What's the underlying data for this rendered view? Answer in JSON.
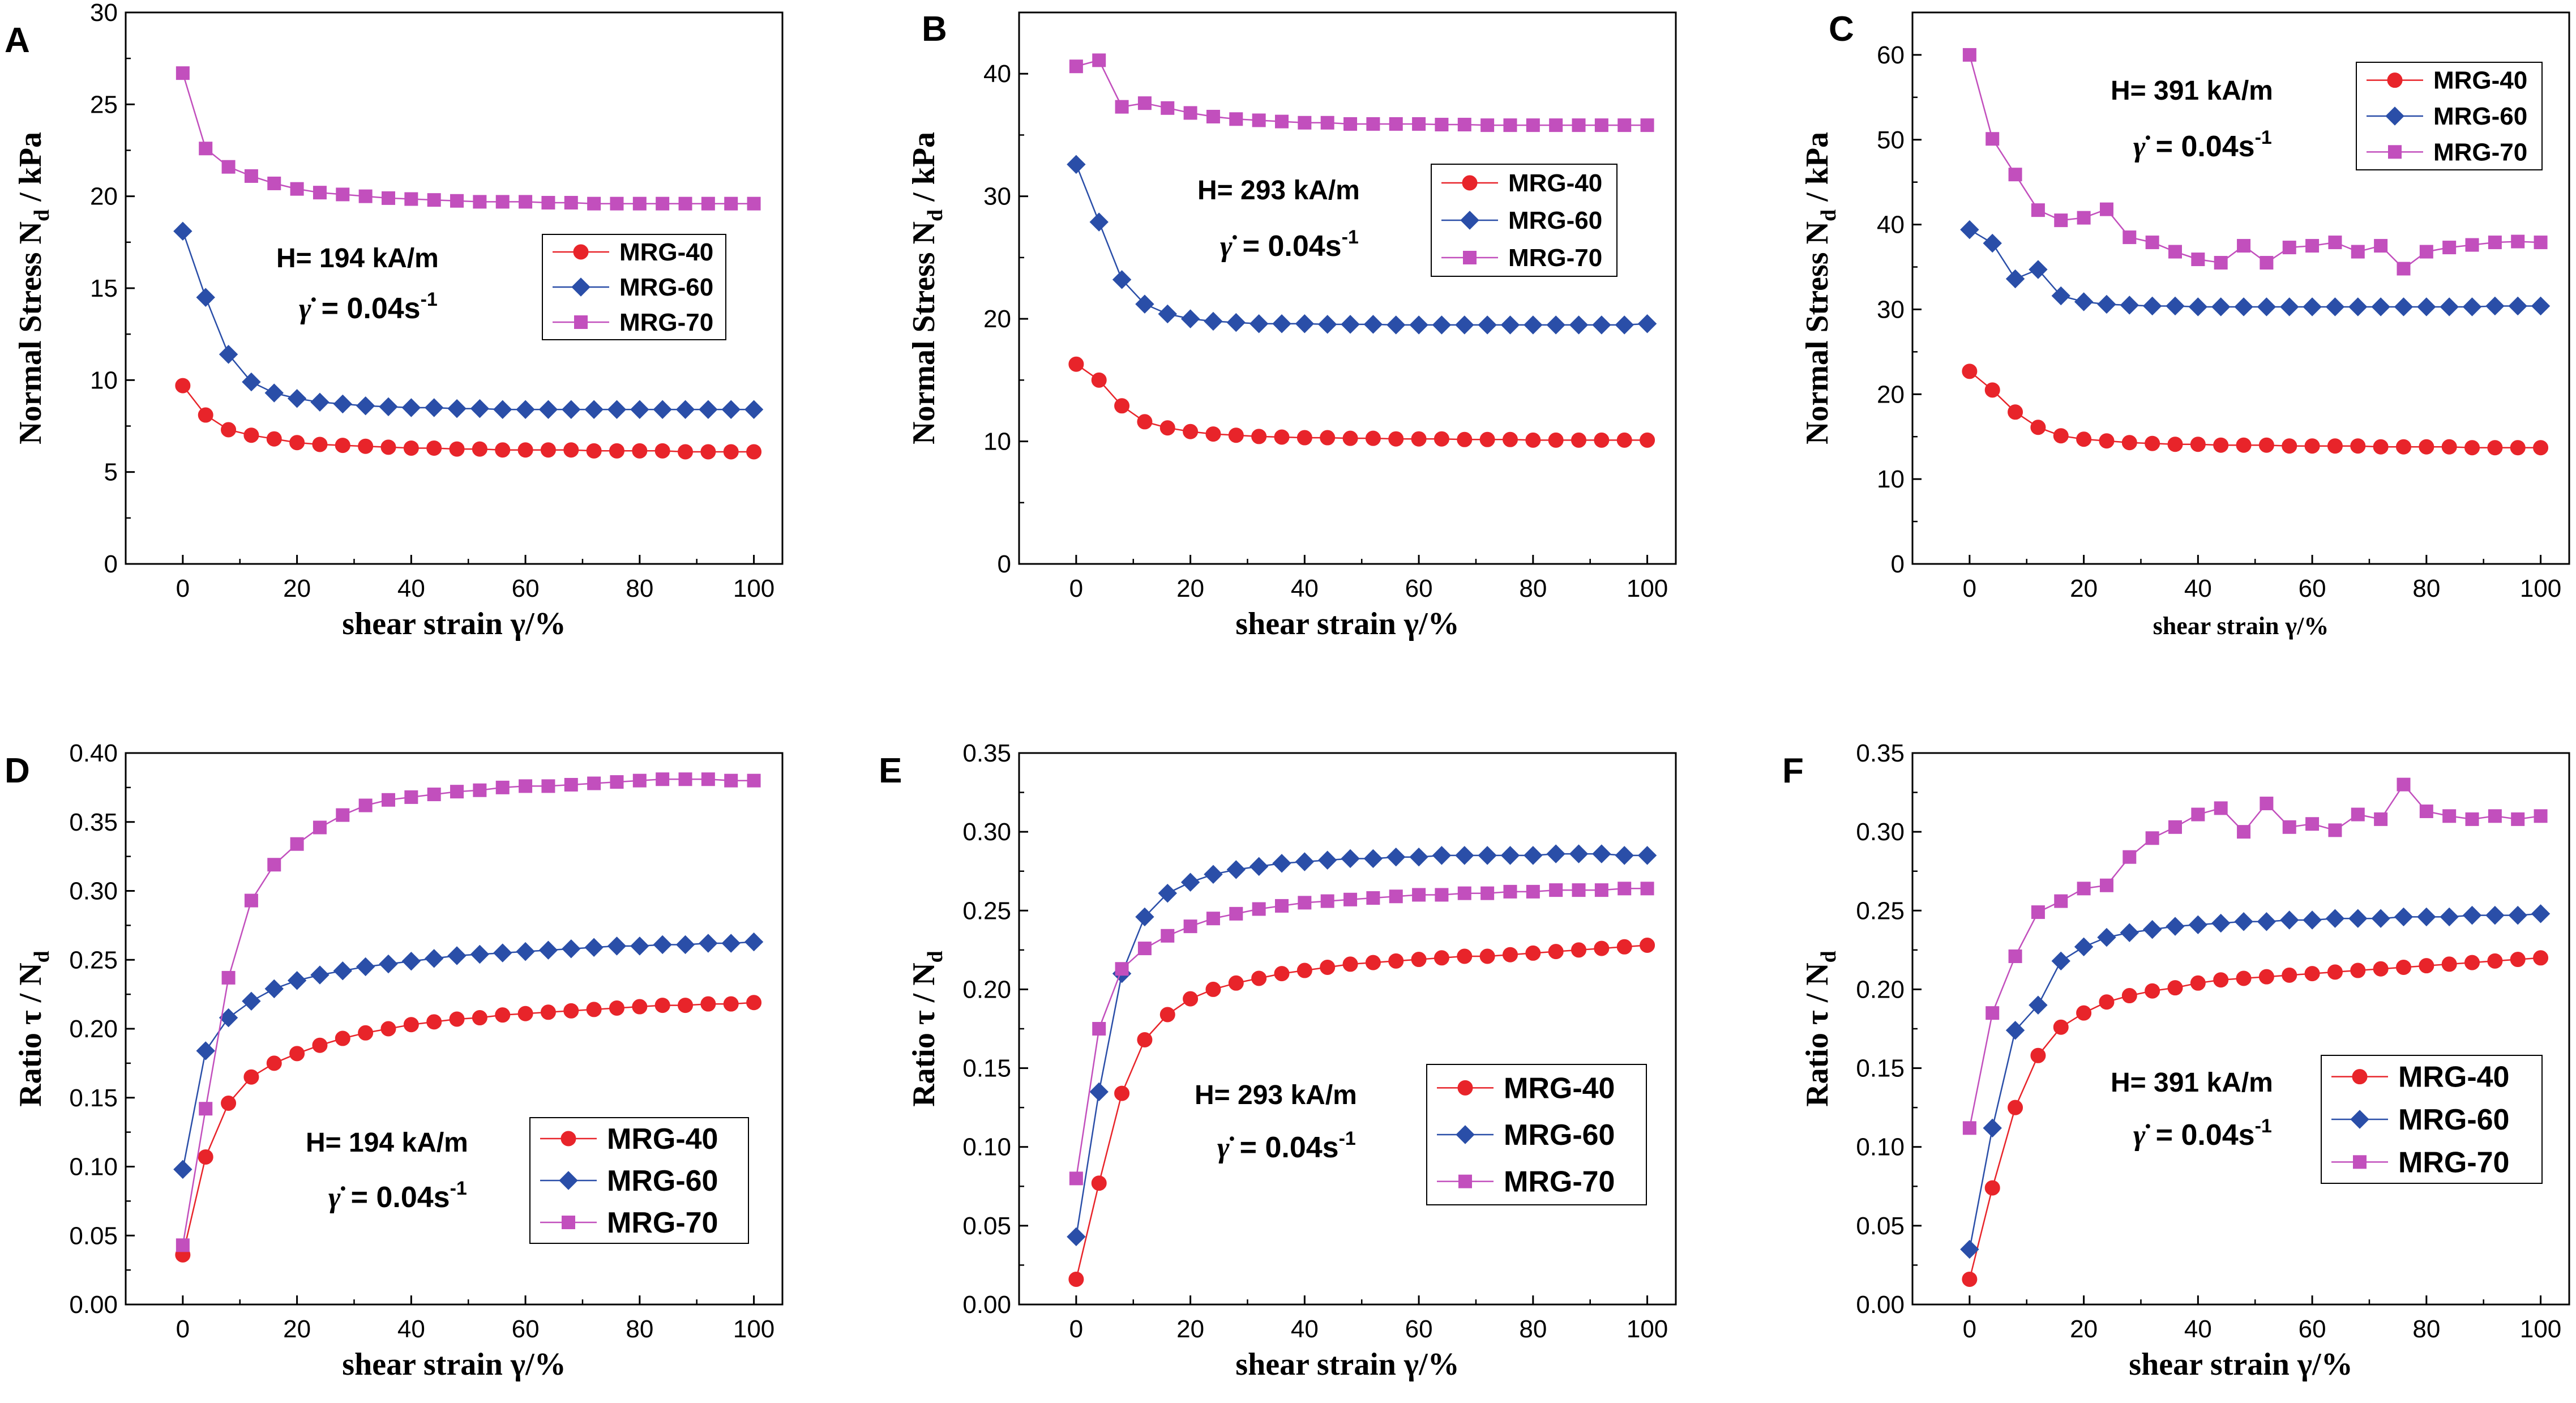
{
  "figure": {
    "colors": {
      "MRG-40": "#e8242a",
      "MRG-60": "#2a4ea8",
      "MRG-70": "#c24fbd",
      "axis": "#000000"
    },
    "panels": [
      {
        "letter": "A",
        "annotation": {
          "field": "H= 194 kA/m",
          "rate_symbol": "γ̇",
          "rate": "= 0.04s",
          "rate_exp": "-1"
        },
        "legend_labels": [
          "MRG-40",
          "MRG-60",
          "MRG-70"
        ]
      },
      {
        "letter": "B",
        "annotation": {
          "field": "H= 293 kA/m",
          "rate_symbol": "γ̇",
          "rate": "= 0.04s",
          "rate_exp": "-1"
        },
        "legend_labels": [
          "MRG-40",
          "MRG-60",
          "MRG-70"
        ]
      },
      {
        "letter": "C",
        "annotation": {
          "field": "H= 391 kA/m",
          "rate_symbol": "γ̇",
          "rate": "= 0.04s",
          "rate_exp": "-1"
        },
        "legend_labels": [
          "MRG-40",
          "MRG-60",
          "MRG-70"
        ]
      },
      {
        "letter": "D",
        "annotation": {
          "field": "H= 194 kA/m",
          "rate_symbol": "γ̇",
          "rate": "= 0.04s",
          "rate_exp": "-1"
        },
        "legend_labels": [
          "MRG-40",
          "MRG-60",
          "MRG-70"
        ]
      },
      {
        "letter": "E",
        "annotation": {
          "field": "H= 293 kA/m",
          "rate_symbol": "γ̇",
          "rate": "= 0.04s",
          "rate_exp": "-1"
        },
        "legend_labels": [
          "MRG-40",
          "MRG-60",
          "MRG-70"
        ]
      },
      {
        "letter": "F",
        "annotation": {
          "field": "H= 391 kA/m",
          "rate_symbol": "γ̇",
          "rate": "= 0.04s",
          "rate_exp": "-1"
        },
        "legend_labels": [
          "MRG-40",
          "MRG-60",
          "MRG-70"
        ]
      }
    ]
  },
  "chart_data": [
    {
      "type": "line",
      "panel": "A",
      "xlabel": "shear strain γ/%",
      "ylabel": "Normal Stress N_d / kPa",
      "ylabel_parts": [
        "Normal Stress N",
        "d",
        " / kPa"
      ],
      "xlim": [
        -10,
        105
      ],
      "ylim": [
        0,
        30
      ],
      "xticks": [
        0,
        20,
        40,
        60,
        80,
        100
      ],
      "yticks": [
        0,
        5,
        10,
        15,
        20,
        25,
        30
      ],
      "ytick_labels": [
        "0",
        "5",
        "10",
        "15",
        "20",
        "25",
        "30"
      ],
      "x": [
        0,
        4,
        8,
        12,
        16,
        20,
        24,
        28,
        32,
        36,
        40,
        44,
        48,
        52,
        56,
        60,
        64,
        68,
        72,
        76,
        80,
        84,
        88,
        92,
        96,
        100
      ],
      "series": [
        {
          "name": "MRG-40",
          "marker": "circle",
          "values": [
            9.7,
            8.1,
            7.3,
            7.0,
            6.8,
            6.6,
            6.5,
            6.45,
            6.4,
            6.35,
            6.3,
            6.3,
            6.25,
            6.25,
            6.2,
            6.2,
            6.2,
            6.2,
            6.15,
            6.15,
            6.15,
            6.15,
            6.1,
            6.1,
            6.1,
            6.1
          ]
        },
        {
          "name": "MRG-60",
          "marker": "diamond",
          "values": [
            18.1,
            14.5,
            11.4,
            9.9,
            9.3,
            9.0,
            8.8,
            8.7,
            8.6,
            8.55,
            8.5,
            8.5,
            8.45,
            8.45,
            8.4,
            8.4,
            8.4,
            8.4,
            8.4,
            8.4,
            8.4,
            8.4,
            8.4,
            8.4,
            8.4,
            8.4
          ]
        },
        {
          "name": "MRG-70",
          "marker": "square",
          "values": [
            26.7,
            22.6,
            21.6,
            21.1,
            20.7,
            20.4,
            20.2,
            20.1,
            20.0,
            19.9,
            19.85,
            19.8,
            19.75,
            19.7,
            19.7,
            19.7,
            19.65,
            19.65,
            19.6,
            19.6,
            19.6,
            19.6,
            19.6,
            19.6,
            19.6,
            19.6
          ]
        }
      ]
    },
    {
      "type": "line",
      "panel": "B",
      "xlabel": "shear strain γ/%",
      "ylabel": "Normal Stress N_d / kPa",
      "ylabel_parts": [
        "Normal Stress N",
        "d",
        " / kPa"
      ],
      "xlim": [
        -10,
        105
      ],
      "ylim": [
        0,
        45
      ],
      "xticks": [
        0,
        20,
        40,
        60,
        80,
        100
      ],
      "yticks": [
        0,
        10,
        20,
        30,
        40
      ],
      "ytick_labels": [
        "0",
        "10",
        "20",
        "30",
        "40"
      ],
      "x": [
        0,
        4,
        8,
        12,
        16,
        20,
        24,
        28,
        32,
        36,
        40,
        44,
        48,
        52,
        56,
        60,
        64,
        68,
        72,
        76,
        80,
        84,
        88,
        92,
        96,
        100
      ],
      "series": [
        {
          "name": "MRG-40",
          "marker": "circle",
          "values": [
            16.3,
            15.0,
            12.9,
            11.6,
            11.1,
            10.8,
            10.6,
            10.5,
            10.4,
            10.35,
            10.3,
            10.3,
            10.25,
            10.25,
            10.2,
            10.2,
            10.2,
            10.15,
            10.15,
            10.15,
            10.1,
            10.1,
            10.1,
            10.1,
            10.1,
            10.1
          ]
        },
        {
          "name": "MRG-60",
          "marker": "diamond",
          "values": [
            32.6,
            27.9,
            23.2,
            21.2,
            20.4,
            20.0,
            19.8,
            19.7,
            19.6,
            19.6,
            19.6,
            19.55,
            19.55,
            19.55,
            19.5,
            19.5,
            19.5,
            19.5,
            19.5,
            19.5,
            19.5,
            19.5,
            19.5,
            19.5,
            19.5,
            19.6
          ]
        },
        {
          "name": "MRG-70",
          "marker": "square",
          "values": [
            40.6,
            41.1,
            37.3,
            37.6,
            37.2,
            36.8,
            36.5,
            36.3,
            36.2,
            36.1,
            36.0,
            36.0,
            35.9,
            35.9,
            35.9,
            35.9,
            35.85,
            35.85,
            35.8,
            35.8,
            35.8,
            35.8,
            35.8,
            35.8,
            35.8,
            35.8
          ]
        }
      ]
    },
    {
      "type": "line",
      "panel": "C",
      "xlabel": "shear strain γ/%",
      "ylabel": "Normal Stress N_d / kPa",
      "ylabel_parts": [
        "Normal Stress N",
        "d",
        " / kPa"
      ],
      "xlim": [
        -10,
        105
      ],
      "ylim": [
        0,
        65
      ],
      "xticks": [
        0,
        20,
        40,
        60,
        80,
        100
      ],
      "yticks": [
        0,
        10,
        20,
        30,
        40,
        50,
        60
      ],
      "ytick_labels": [
        "0",
        "10",
        "20",
        "30",
        "40",
        "50",
        "60"
      ],
      "x": [
        0,
        4,
        8,
        12,
        16,
        20,
        24,
        28,
        32,
        36,
        40,
        44,
        48,
        52,
        56,
        60,
        64,
        68,
        72,
        76,
        80,
        84,
        88,
        92,
        96,
        100
      ],
      "series": [
        {
          "name": "MRG-40",
          "marker": "circle",
          "values": [
            22.7,
            20.5,
            17.9,
            16.1,
            15.1,
            14.7,
            14.5,
            14.3,
            14.2,
            14.1,
            14.1,
            14.0,
            14.0,
            14.0,
            13.9,
            13.9,
            13.9,
            13.9,
            13.8,
            13.8,
            13.8,
            13.8,
            13.7,
            13.7,
            13.7,
            13.7
          ]
        },
        {
          "name": "MRG-60",
          "marker": "diamond",
          "values": [
            39.4,
            37.8,
            33.6,
            34.7,
            31.6,
            30.9,
            30.6,
            30.5,
            30.4,
            30.4,
            30.3,
            30.3,
            30.3,
            30.3,
            30.3,
            30.3,
            30.3,
            30.3,
            30.3,
            30.3,
            30.3,
            30.3,
            30.3,
            30.4,
            30.4,
            30.4
          ]
        },
        {
          "name": "MRG-70",
          "marker": "square",
          "values": [
            60.0,
            50.1,
            45.9,
            41.7,
            40.5,
            40.8,
            41.8,
            38.5,
            37.9,
            36.8,
            35.9,
            35.5,
            37.5,
            35.5,
            37.3,
            37.5,
            37.9,
            36.8,
            37.5,
            34.8,
            36.8,
            37.3,
            37.6,
            37.9,
            38.0,
            37.9
          ]
        }
      ]
    },
    {
      "type": "line",
      "panel": "D",
      "xlabel": "shear strain γ/%",
      "ylabel": "Ratio τ / N_d",
      "ylabel_parts": [
        "Ratio τ / N",
        "d",
        ""
      ],
      "xlim": [
        -10,
        105
      ],
      "ylim": [
        0,
        0.4
      ],
      "xticks": [
        0,
        20,
        40,
        60,
        80,
        100
      ],
      "yticks": [
        0,
        0.05,
        0.1,
        0.15,
        0.2,
        0.25,
        0.3,
        0.35,
        0.4
      ],
      "ytick_labels": [
        "0.00",
        "0.05",
        "0.10",
        "0.15",
        "0.20",
        "0.25",
        "0.30",
        "0.35",
        "0.40"
      ],
      "x": [
        0,
        4,
        8,
        12,
        16,
        20,
        24,
        28,
        32,
        36,
        40,
        44,
        48,
        52,
        56,
        60,
        64,
        68,
        72,
        76,
        80,
        84,
        88,
        92,
        96,
        100
      ],
      "series": [
        {
          "name": "MRG-40",
          "marker": "circle",
          "values": [
            0.036,
            0.107,
            0.146,
            0.165,
            0.175,
            0.182,
            0.188,
            0.193,
            0.197,
            0.2,
            0.203,
            0.205,
            0.207,
            0.208,
            0.21,
            0.211,
            0.212,
            0.213,
            0.214,
            0.215,
            0.216,
            0.217,
            0.217,
            0.218,
            0.218,
            0.219
          ]
        },
        {
          "name": "MRG-60",
          "marker": "diamond",
          "values": [
            0.098,
            0.184,
            0.208,
            0.22,
            0.229,
            0.235,
            0.239,
            0.242,
            0.245,
            0.247,
            0.249,
            0.251,
            0.253,
            0.254,
            0.255,
            0.256,
            0.257,
            0.258,
            0.259,
            0.26,
            0.26,
            0.261,
            0.261,
            0.262,
            0.262,
            0.263
          ]
        },
        {
          "name": "MRG-70",
          "marker": "square",
          "values": [
            0.043,
            0.142,
            0.237,
            0.293,
            0.319,
            0.334,
            0.346,
            0.355,
            0.362,
            0.366,
            0.368,
            0.37,
            0.372,
            0.373,
            0.375,
            0.376,
            0.376,
            0.377,
            0.378,
            0.379,
            0.38,
            0.381,
            0.381,
            0.381,
            0.38,
            0.38
          ]
        }
      ]
    },
    {
      "type": "line",
      "panel": "E",
      "xlabel": "shear strain γ/%",
      "ylabel": "Ratio τ / N_d",
      "ylabel_parts": [
        "Ratio τ / N",
        "d",
        ""
      ],
      "xlim": [
        -10,
        105
      ],
      "ylim": [
        0,
        0.35
      ],
      "xticks": [
        0,
        20,
        40,
        60,
        80,
        100
      ],
      "yticks": [
        0,
        0.05,
        0.1,
        0.15,
        0.2,
        0.25,
        0.3,
        0.35
      ],
      "ytick_labels": [
        "0.00",
        "0.05",
        "0.10",
        "0.15",
        "0.20",
        "0.25",
        "0.30",
        "0.35"
      ],
      "x": [
        0,
        4,
        8,
        12,
        16,
        20,
        24,
        28,
        32,
        36,
        40,
        44,
        48,
        52,
        56,
        60,
        64,
        68,
        72,
        76,
        80,
        84,
        88,
        92,
        96,
        100
      ],
      "series": [
        {
          "name": "MRG-40",
          "marker": "circle",
          "values": [
            0.016,
            0.077,
            0.134,
            0.168,
            0.184,
            0.194,
            0.2,
            0.204,
            0.207,
            0.21,
            0.212,
            0.214,
            0.216,
            0.217,
            0.218,
            0.219,
            0.22,
            0.221,
            0.221,
            0.222,
            0.223,
            0.224,
            0.225,
            0.226,
            0.227,
            0.228
          ]
        },
        {
          "name": "MRG-60",
          "marker": "diamond",
          "values": [
            0.043,
            0.135,
            0.21,
            0.246,
            0.261,
            0.268,
            0.273,
            0.276,
            0.278,
            0.28,
            0.281,
            0.282,
            0.283,
            0.283,
            0.284,
            0.284,
            0.285,
            0.285,
            0.285,
            0.285,
            0.285,
            0.286,
            0.286,
            0.286,
            0.285,
            0.285
          ]
        },
        {
          "name": "MRG-70",
          "marker": "square",
          "values": [
            0.08,
            0.175,
            0.213,
            0.226,
            0.234,
            0.24,
            0.245,
            0.248,
            0.251,
            0.253,
            0.255,
            0.256,
            0.257,
            0.258,
            0.259,
            0.26,
            0.26,
            0.261,
            0.261,
            0.262,
            0.262,
            0.263,
            0.263,
            0.263,
            0.264,
            0.264
          ]
        }
      ]
    },
    {
      "type": "line",
      "panel": "F",
      "xlabel": "shear strain γ/%",
      "ylabel": "Ratio τ / N_d",
      "ylabel_parts": [
        "Ratio τ / N",
        "d",
        ""
      ],
      "xlim": [
        -10,
        105
      ],
      "ylim": [
        0,
        0.35
      ],
      "xticks": [
        0,
        20,
        40,
        60,
        80,
        100
      ],
      "yticks": [
        0,
        0.05,
        0.1,
        0.15,
        0.2,
        0.25,
        0.3,
        0.35
      ],
      "ytick_labels": [
        "0.00",
        "0.05",
        "0.10",
        "0.15",
        "0.20",
        "0.25",
        "0.30",
        "0.35"
      ],
      "x": [
        0,
        4,
        8,
        12,
        16,
        20,
        24,
        28,
        32,
        36,
        40,
        44,
        48,
        52,
        56,
        60,
        64,
        68,
        72,
        76,
        80,
        84,
        88,
        92,
        96,
        100
      ],
      "series": [
        {
          "name": "MRG-40",
          "marker": "circle",
          "values": [
            0.016,
            0.074,
            0.125,
            0.158,
            0.176,
            0.185,
            0.192,
            0.196,
            0.199,
            0.201,
            0.204,
            0.206,
            0.207,
            0.208,
            0.209,
            0.21,
            0.211,
            0.212,
            0.213,
            0.214,
            0.215,
            0.216,
            0.217,
            0.218,
            0.219,
            0.22
          ]
        },
        {
          "name": "MRG-60",
          "marker": "diamond",
          "values": [
            0.035,
            0.112,
            0.174,
            0.19,
            0.218,
            0.227,
            0.233,
            0.236,
            0.238,
            0.24,
            0.241,
            0.242,
            0.243,
            0.243,
            0.244,
            0.244,
            0.245,
            0.245,
            0.245,
            0.246,
            0.246,
            0.246,
            0.247,
            0.247,
            0.247,
            0.248
          ]
        },
        {
          "name": "MRG-70",
          "marker": "square",
          "values": [
            0.112,
            0.185,
            0.221,
            0.249,
            0.256,
            0.264,
            0.266,
            0.284,
            0.296,
            0.303,
            0.311,
            0.315,
            0.3,
            0.318,
            0.303,
            0.305,
            0.301,
            0.311,
            0.308,
            0.33,
            0.313,
            0.31,
            0.308,
            0.31,
            0.308,
            0.31
          ]
        }
      ]
    }
  ]
}
